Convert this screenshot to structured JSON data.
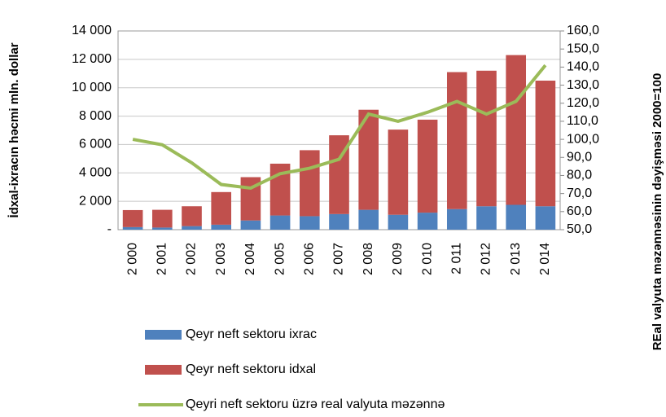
{
  "chart_data": {
    "type": "bar-line",
    "y_label": "İdxal-ixracın həcmi mln. dollar",
    "y2_label": "REal valyuta məzənnəsinin dəyişməsi 2000=100",
    "categories": [
      "2 000",
      "2 001",
      "2 002",
      "2 003",
      "2 004",
      "2 005",
      "2 006",
      "2 007",
      "2 008",
      "2 009",
      "2 010",
      "2 011",
      "2 012",
      "2 013",
      "2 014"
    ],
    "series": [
      {
        "name": "Qeyr neft sektoru ixrac",
        "color": "#4f81bd",
        "kind": "bar",
        "values": [
          180,
          150,
          250,
          350,
          650,
          1000,
          950,
          1100,
          1400,
          1050,
          1200,
          1450,
          1650,
          1750,
          1650
        ]
      },
      {
        "name": "Qeyr neft sektoru idxal",
        "color": "#c0504d",
        "kind": "bar",
        "values": [
          1200,
          1250,
          1400,
          2300,
          3050,
          3650,
          4650,
          5550,
          7050,
          6000,
          6550,
          9650,
          9550,
          10550,
          8850
        ]
      },
      {
        "name": "Qeyri neft sektoru üzrə real valyuta məzənnə",
        "color": "#9bbb59",
        "kind": "line",
        "axis": "y2",
        "values": [
          100,
          97,
          87,
          75,
          73,
          81,
          84,
          89,
          114,
          110,
          115,
          121,
          114,
          121,
          141
        ]
      }
    ],
    "ylim": [
      0,
      14000
    ],
    "yticks": [
      {
        "value": 0,
        "label": "-"
      },
      {
        "value": 2000,
        "label": "2 000"
      },
      {
        "value": 4000,
        "label": "4 000"
      },
      {
        "value": 6000,
        "label": "6 000"
      },
      {
        "value": 8000,
        "label": "8 000"
      },
      {
        "value": 10000,
        "label": "10 000"
      },
      {
        "value": 12000,
        "label": "12 000"
      },
      {
        "value": 14000,
        "label": "14 000"
      }
    ],
    "y2lim": [
      50,
      160
    ],
    "y2ticks": [
      {
        "value": 50,
        "label": "50,0"
      },
      {
        "value": 60,
        "label": "60,0"
      },
      {
        "value": 70,
        "label": "70,0"
      },
      {
        "value": 80,
        "label": "80,0"
      },
      {
        "value": 90,
        "label": "90,0"
      },
      {
        "value": 100,
        "label": "100,0"
      },
      {
        "value": 110,
        "label": "110,0"
      },
      {
        "value": 120,
        "label": "120,0"
      },
      {
        "value": 130,
        "label": "130,0"
      },
      {
        "value": 140,
        "label": "140,0"
      },
      {
        "value": 150,
        "label": "150,0"
      },
      {
        "value": 160,
        "label": "160,0"
      }
    ],
    "grid": true,
    "stacked": true
  }
}
